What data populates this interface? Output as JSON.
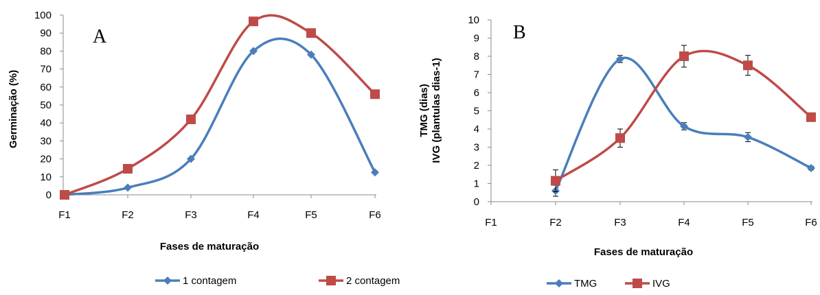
{
  "chart_data": [
    {
      "type": "line",
      "panel_label": "A",
      "categories": [
        "F1",
        "F2",
        "F3",
        "F4",
        "F5",
        "F6"
      ],
      "series": [
        {
          "name": "1 contagem",
          "color": "#4a7ebb",
          "marker": "diamond",
          "values": [
            0,
            4,
            20,
            80,
            78,
            12.5
          ]
        },
        {
          "name": "2 contagem",
          "color": "#be4b48",
          "marker": "square",
          "values": [
            0,
            14.5,
            42,
            96.5,
            90,
            56
          ]
        }
      ],
      "xlabel": "Fases de maturação",
      "ylabel": "Germinação (%)",
      "ylim": [
        0,
        100
      ],
      "yticks": [
        "0",
        "10",
        "20",
        "30",
        "40",
        "50",
        "60",
        "70",
        "80",
        "90",
        "100"
      ],
      "grid": false,
      "legend_position": "bottom"
    },
    {
      "type": "line",
      "panel_label": "B",
      "categories": [
        "F1",
        "F2",
        "F3",
        "F4",
        "F5",
        "F6"
      ],
      "series": [
        {
          "name": "TMG",
          "color": "#4a7ebb",
          "marker": "diamond",
          "values": [
            null,
            0.6,
            7.85,
            4.15,
            3.55,
            1.85
          ],
          "errors": [
            null,
            0.3,
            0.2,
            0.2,
            0.25,
            0.1
          ]
        },
        {
          "name": "IVG",
          "color": "#be4b48",
          "marker": "square",
          "values": [
            null,
            1.15,
            3.5,
            8.0,
            7.5,
            4.65
          ],
          "errors": [
            null,
            0.6,
            0.5,
            0.6,
            0.55,
            0.1
          ]
        }
      ],
      "xlabel": "Fases de maturação",
      "ylabel_line1": "TMG (dias)",
      "ylabel_line2": "IVG (plantulas dias-1)",
      "ylim": [
        0,
        10
      ],
      "yticks": [
        "0",
        "1",
        "2",
        "3",
        "4",
        "5",
        "6",
        "7",
        "8",
        "9",
        "10"
      ],
      "grid": false,
      "legend_position": "bottom"
    }
  ]
}
